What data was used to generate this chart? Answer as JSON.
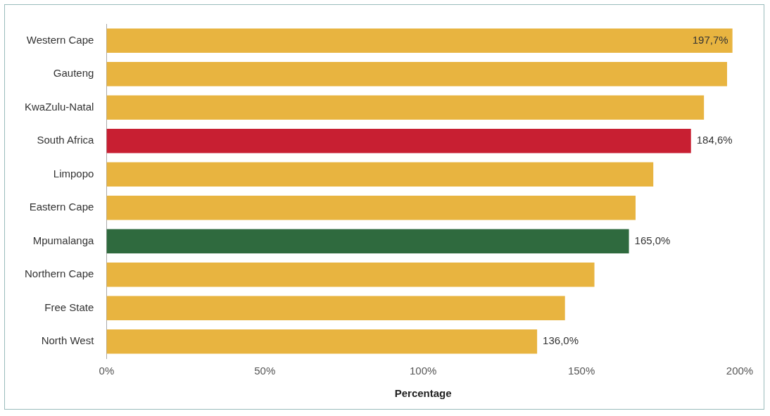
{
  "chart_data": {
    "type": "bar",
    "orientation": "horizontal",
    "xlabel": "Percentage",
    "categories": [
      "Western Cape",
      "Gauteng",
      "KwaZulu-Natal",
      "South Africa",
      "Limpopo",
      "Eastern Cape",
      "Mpumalanga",
      "Northern Cape",
      "Free State",
      "North West"
    ],
    "values": [
      197.7,
      196,
      188.7,
      184.6,
      172.7,
      167.1,
      165.0,
      154.1,
      144.8,
      136.0
    ],
    "value_labels": [
      "197,7%",
      null,
      null,
      "184,6%",
      null,
      null,
      "165,0%",
      null,
      null,
      "136,0%"
    ],
    "colors": [
      "#e8b440",
      "#e8b440",
      "#e8b440",
      "#c81f32",
      "#e8b440",
      "#e8b440",
      "#2f6a3e",
      "#e8b440",
      "#e8b440",
      "#e8b440"
    ],
    "xlim": [
      0,
      200
    ],
    "xticks": [
      {
        "value": 0,
        "label": "0%"
      },
      {
        "value": 50,
        "label": "50%"
      },
      {
        "value": 100,
        "label": "100%"
      },
      {
        "value": 150,
        "label": "150%"
      },
      {
        "value": 200,
        "label": "200%"
      }
    ],
    "grid": false,
    "legend": false
  }
}
